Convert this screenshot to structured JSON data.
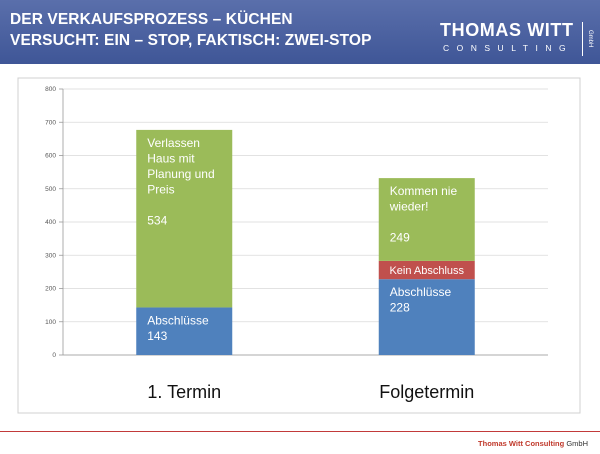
{
  "header": {
    "title_line1": "DER VERKAUFSPROZESS – KÜCHEN",
    "title_line2": "VERSUCHT: EIN – STOP, FAKTISCH: ZWEI-STOP"
  },
  "logo": {
    "name": "THOMAS WITT",
    "sub": "CONSULTING",
    "gmbh": "GmbH"
  },
  "footer": {
    "company": "Thomas Witt Consulting",
    "suffix": " GmbH"
  },
  "colors": {
    "header_bg": "#4a60a0",
    "green": "#9bbb59",
    "red": "#c0504d",
    "blue": "#4f81bd",
    "footer_red": "#c0392b"
  },
  "chart_data": {
    "type": "bar",
    "stacked": true,
    "categories": [
      "1. Termin",
      "Folgetermin"
    ],
    "ylim": [
      0,
      800
    ],
    "yticks": [
      0,
      100,
      200,
      300,
      400,
      500,
      600,
      700,
      800
    ],
    "grid": true,
    "series": [
      {
        "color": "#4f81bd",
        "values": [
          143,
          228
        ],
        "labels": [
          [
            "Abschlüsse",
            "143"
          ],
          [
            "Abschlüsse",
            "228"
          ]
        ]
      },
      {
        "color": "#c0504d",
        "values": [
          0,
          55
        ],
        "labels": [
          [],
          [
            "Kein Abschluss"
          ]
        ]
      },
      {
        "color": "#9bbb59",
        "values": [
          534,
          249
        ],
        "labels": [
          [
            "Verlassen",
            "Haus mit",
            "Planung und",
            "Preis",
            "",
            "534"
          ],
          [
            "Kommen nie",
            "wieder!",
            "",
            "249"
          ]
        ]
      }
    ]
  }
}
